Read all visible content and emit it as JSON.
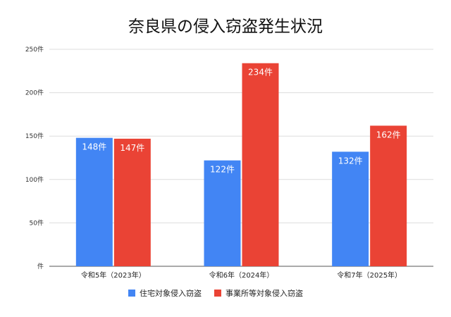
{
  "chart_data": {
    "type": "bar",
    "title": "奈良県の侵入窃盗発生状況",
    "xlabel": "",
    "ylabel": "",
    "categories": [
      "令和5年（2023年）",
      "令和6年（2024年）",
      "令和7年（2025年）"
    ],
    "series": [
      {
        "name": "住宅対象侵入窃盗",
        "color": "#4285F4",
        "values": [
          148,
          122,
          132
        ],
        "labels": [
          "148件",
          "122件",
          "132件"
        ]
      },
      {
        "name": "事業所等対象侵入窃盗",
        "color": "#EA4335",
        "values": [
          147,
          234,
          162
        ],
        "labels": [
          "147件",
          "234件",
          "162件"
        ]
      }
    ],
    "ylim": [
      0,
      250
    ],
    "yticks": [
      0,
      50,
      100,
      150,
      200,
      250
    ],
    "ytick_labels": [
      "件",
      "50件",
      "100件",
      "150件",
      "200件",
      "250件"
    ],
    "grid": true,
    "legend_position": "bottom"
  }
}
